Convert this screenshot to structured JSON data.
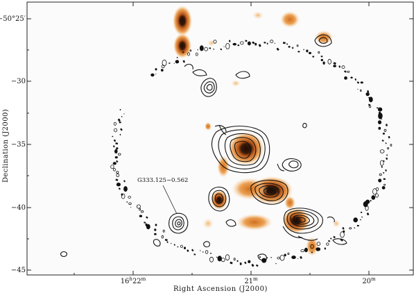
{
  "figure": {
    "xlabel": "Right Ascension (J2000)",
    "ylabel": "Declination (J2000)",
    "annotation": "G333.125−0.562",
    "x_ticks": [
      {
        "h": "16",
        "hsup": "h",
        "m": "22",
        "msup": "m",
        "ra_min": 22
      },
      {
        "h": "",
        "hsup": "",
        "m": "21",
        "msup": "m",
        "ra_min": 21
      },
      {
        "h": "",
        "hsup": "",
        "m": "20",
        "msup": "m",
        "ra_min": 20
      }
    ],
    "y_ticks": [
      {
        "label": "−50°25′",
        "dec_min": -25
      },
      {
        "label": "−30",
        "dec_min": -30
      },
      {
        "label": "−35",
        "dec_min": -35
      },
      {
        "label": "−40",
        "dec_min": -40
      },
      {
        "label": "−45",
        "dec_min": -45
      }
    ],
    "colors": {
      "emission_core": "#2a1208",
      "emission_mid": "#c8661a",
      "emission_outer": "#f3c07a",
      "contour": "#111111"
    }
  }
}
